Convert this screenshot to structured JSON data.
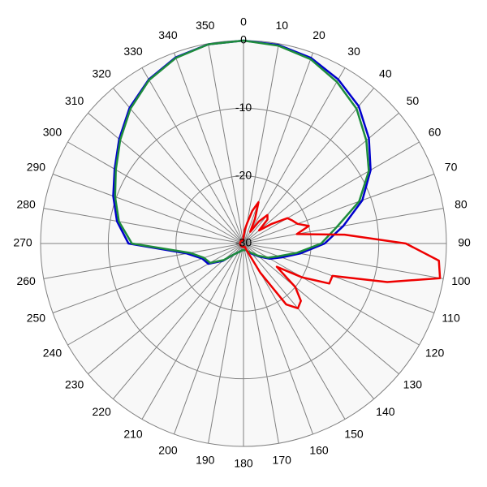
{
  "chart_data": {
    "type": "polar",
    "rlim": [
      -30,
      0
    ],
    "rticks": [
      0,
      -10,
      -20,
      -30
    ],
    "thetaticks": [
      0,
      10,
      20,
      30,
      40,
      50,
      60,
      70,
      80,
      90,
      100,
      110,
      120,
      130,
      140,
      150,
      160,
      170,
      180,
      190,
      200,
      210,
      220,
      230,
      240,
      250,
      260,
      270,
      280,
      290,
      300,
      310,
      320,
      330,
      340,
      350
    ],
    "direction": "clockwise",
    "zero": "top",
    "grid": true,
    "series": [
      {
        "color": "#0000cc",
        "theta": [
          0,
          10,
          20,
          30,
          40,
          50,
          60,
          70,
          80,
          90,
          100,
          110,
          120,
          130,
          140,
          150,
          160,
          170,
          180,
          190,
          200,
          210,
          220,
          230,
          240,
          250,
          260,
          270,
          280,
          290,
          300,
          310,
          320,
          330,
          340,
          350
        ],
        "values": [
          0,
          -0.2,
          -0.8,
          -2,
          -3.5,
          -5.8,
          -8.3,
          -11.3,
          -15,
          -18,
          -21.5,
          -24,
          -25.5,
          -27,
          -28,
          -28.5,
          -29,
          -29,
          -29,
          -29,
          -28.8,
          -28.5,
          -28,
          -26,
          -24,
          -23.5,
          -21.5,
          -13,
          -11,
          -9.5,
          -8,
          -6,
          -3.8,
          -2,
          -0.7,
          -0.1
        ]
      },
      {
        "color": "#1e8c3c",
        "theta": [
          0,
          10,
          20,
          30,
          40,
          50,
          60,
          70,
          80,
          90,
          100,
          110,
          120,
          130,
          140,
          150,
          160,
          170,
          180,
          190,
          200,
          210,
          220,
          230,
          240,
          250,
          260,
          270,
          280,
          290,
          300,
          310,
          320,
          330,
          340,
          350
        ],
        "values": [
          0,
          -0.3,
          -1,
          -2.4,
          -4,
          -6.3,
          -8.6,
          -11.8,
          -16,
          -18.5,
          -22,
          -24.5,
          -25.8,
          -27.2,
          -28.2,
          -28.6,
          -29,
          -29,
          -29,
          -29,
          -28.8,
          -28.5,
          -28,
          -26.2,
          -24.3,
          -23.8,
          -22,
          -13.5,
          -11.3,
          -9.8,
          -8.2,
          -6.2,
          -4,
          -2.1,
          -0.8,
          -0.1
        ]
      },
      {
        "color": "#ee0000",
        "theta": [
          0,
          5,
          10,
          15,
          20,
          25,
          30,
          35,
          40,
          45,
          50,
          55,
          60,
          65,
          70,
          75,
          80,
          85,
          90,
          95,
          100,
          105,
          110,
          115,
          120,
          125,
          130,
          135,
          140,
          145,
          150,
          155,
          160,
          165,
          170,
          175,
          180,
          185,
          190,
          195,
          200,
          205,
          210,
          215,
          220,
          225,
          230,
          235,
          240,
          245,
          250,
          255,
          260,
          265,
          270,
          275,
          280,
          285,
          290,
          295,
          300,
          305,
          310,
          315,
          320,
          325,
          330,
          335,
          340,
          345,
          350,
          355
        ],
        "values": [
          -29,
          -28,
          -27,
          -25,
          -23.5,
          -26,
          -28,
          -26,
          -24.5,
          -25,
          -27,
          -25,
          -22.5,
          -22,
          -21.5,
          -20,
          -22,
          -15,
          -6,
          -1,
          -0.5,
          -8,
          -16,
          -16,
          -20,
          -24,
          -20,
          -18,
          -17.5,
          -19,
          -25,
          -29,
          -29.5,
          -29.5,
          -29.5,
          -29.5,
          -29.5,
          -29.5,
          -29.5,
          -29.5,
          -29.5,
          -29.5,
          -29.5,
          -29.5,
          -29.5,
          -29.5,
          -29.5,
          -29.5,
          -29.5,
          -29.5,
          -29.5,
          -29.5,
          -29.5,
          -29.5,
          -29.5,
          -29.5,
          -29.5,
          -29.5,
          -29.5,
          -29.5,
          -29.5,
          -29.5,
          -29.5,
          -29.5,
          -29.5,
          -29.5,
          -29.5,
          -29.5,
          -29.5,
          -29.5,
          -29.5,
          -29.5
        ]
      }
    ]
  }
}
